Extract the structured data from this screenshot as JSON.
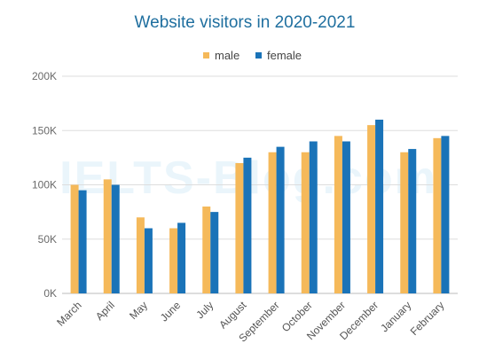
{
  "chart_data": {
    "type": "bar",
    "title": "Website visitors in 2020-2021",
    "categories": [
      "March",
      "April",
      "May",
      "June",
      "July",
      "August",
      "September",
      "October",
      "November",
      "December",
      "January",
      "February"
    ],
    "series": [
      {
        "name": "male",
        "color": "#f5b95a",
        "values": [
          100000,
          105000,
          70000,
          60000,
          80000,
          120000,
          130000,
          130000,
          145000,
          155000,
          130000,
          143000
        ]
      },
      {
        "name": "female",
        "color": "#1a73b8",
        "values": [
          95000,
          100000,
          60000,
          65000,
          75000,
          125000,
          135000,
          140000,
          140000,
          160000,
          133000,
          145000
        ]
      }
    ],
    "ylim": [
      0,
      200000
    ],
    "yticks": [
      0,
      50000,
      100000,
      150000,
      200000
    ],
    "ytick_labels": [
      "0K",
      "50K",
      "100K",
      "150K",
      "200K"
    ],
    "xlabel": "",
    "ylabel": "",
    "grid": true,
    "legend_position": "top-center"
  },
  "watermark": "IELTS-Blog.com"
}
